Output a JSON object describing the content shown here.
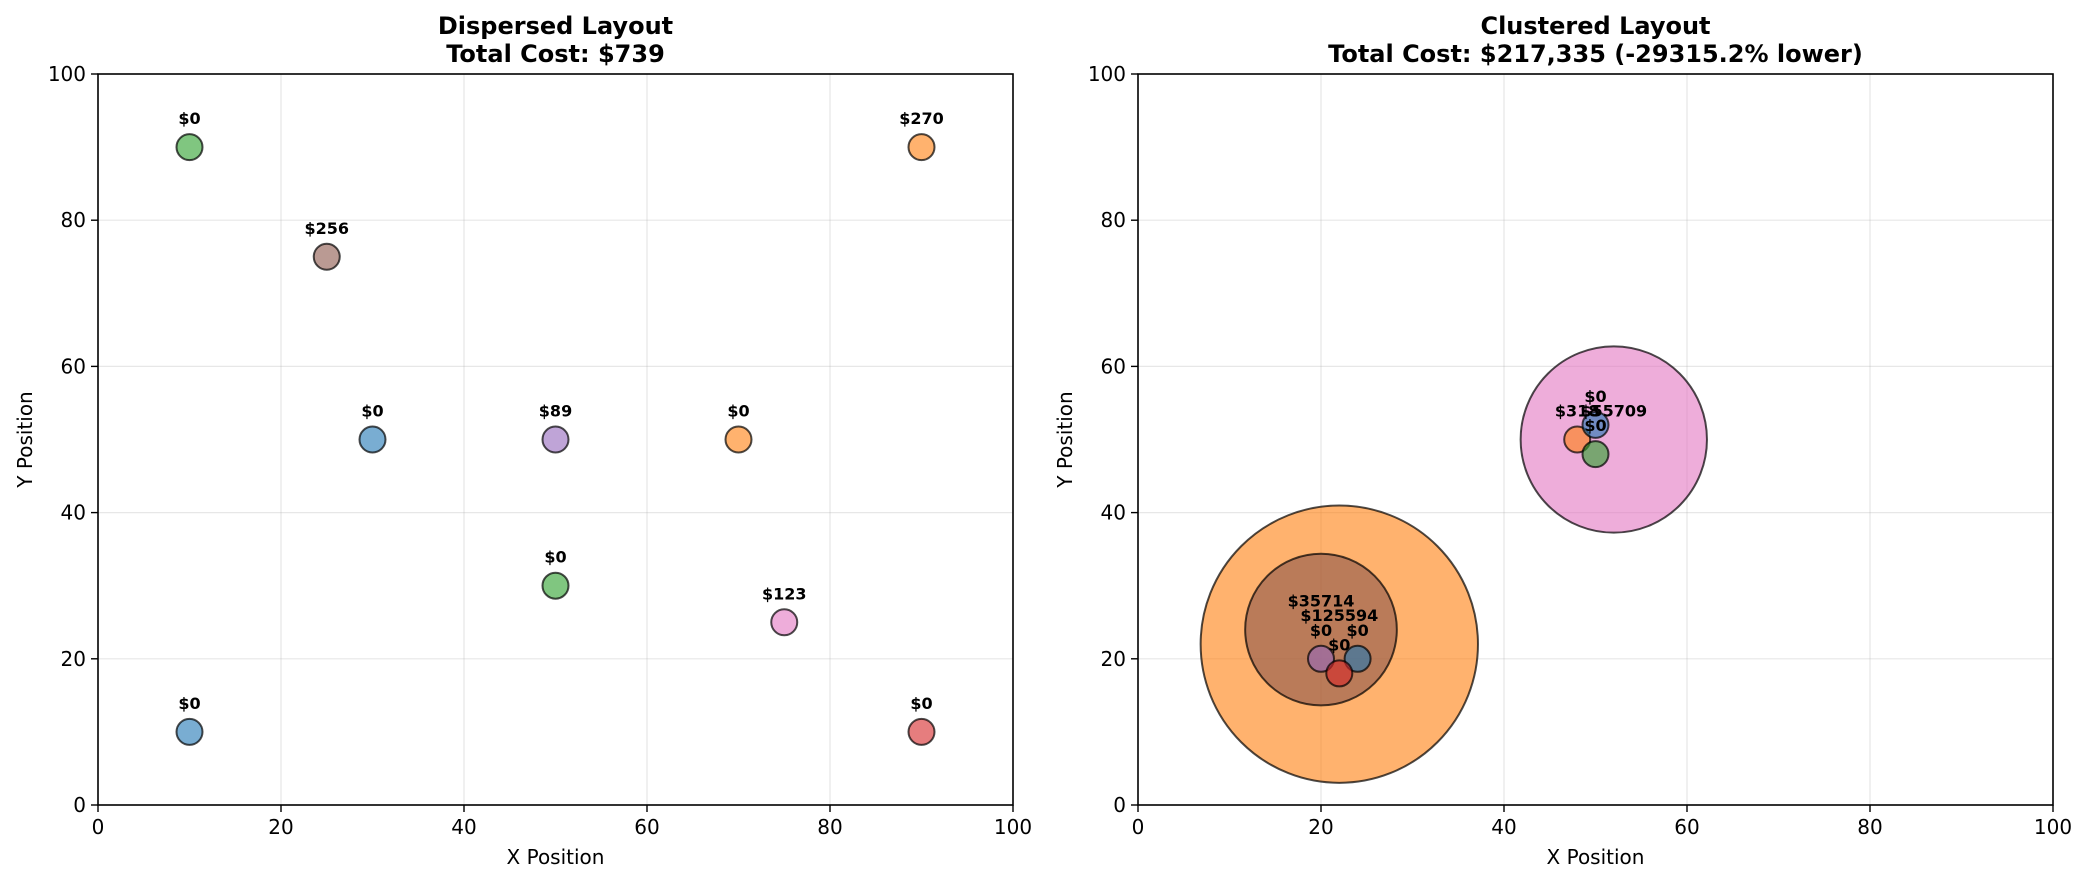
{
  "chart_data": [
    {
      "type": "scatter",
      "title": "Dispersed Layout",
      "subtitle": "Total Cost: $739",
      "xlabel": "X Position",
      "ylabel": "Y Position",
      "xlim": [
        0,
        100
      ],
      "ylim": [
        0,
        100
      ],
      "xticks": [
        "0",
        "20",
        "40",
        "60",
        "80",
        "100"
      ],
      "yticks": [
        "0",
        "20",
        "40",
        "60",
        "80",
        "100"
      ],
      "grid": true,
      "points": [
        {
          "x": 10,
          "y": 10,
          "size": 3,
          "label": "$0",
          "color": "#1f77b4"
        },
        {
          "x": 90,
          "y": 90,
          "size": 3,
          "label": "$270",
          "color": "#ff7f0e"
        },
        {
          "x": 50,
          "y": 30,
          "size": 3,
          "label": "$0",
          "color": "#2ca02c"
        },
        {
          "x": 90,
          "y": 10,
          "size": 3,
          "label": "$0",
          "color": "#d62728"
        },
        {
          "x": 50,
          "y": 50,
          "size": 3,
          "label": "$89",
          "color": "#9467bd"
        },
        {
          "x": 25,
          "y": 75,
          "size": 3,
          "label": "$256",
          "color": "#8c564b"
        },
        {
          "x": 75,
          "y": 25,
          "size": 3,
          "label": "$123",
          "color": "#e377c2"
        },
        {
          "x": 30,
          "y": 50,
          "size": 3,
          "label": "$0",
          "color": "#1f77b4"
        },
        {
          "x": 70,
          "y": 50,
          "size": 3,
          "label": "$0",
          "color": "#ff7f0e"
        },
        {
          "x": 10,
          "y": 90,
          "size": 3,
          "label": "$0",
          "color": "#2ca02c"
        }
      ]
    },
    {
      "type": "scatter",
      "title": "Clustered Layout",
      "subtitle": "Total Cost: $217,335 (-29315.2% lower)",
      "xlabel": "X Position",
      "ylabel": "Y Position",
      "xlim": [
        0,
        100
      ],
      "ylim": [
        0,
        100
      ],
      "xticks": [
        "0",
        "20",
        "40",
        "60",
        "80",
        "100"
      ],
      "yticks": [
        "0",
        "20",
        "40",
        "60",
        "80",
        "100"
      ],
      "grid": true,
      "points": [
        {
          "x": 22,
          "y": 22,
          "size": 32,
          "label": "$125594",
          "color": "#ff7f0e"
        },
        {
          "x": 52,
          "y": 50,
          "size": 21.5,
          "label": "$55709",
          "color": "#e377c2"
        },
        {
          "x": 20,
          "y": 24,
          "size": 17.5,
          "label": "$35714",
          "color": "#8c564b"
        },
        {
          "x": 20,
          "y": 20,
          "size": 3,
          "label": "$0",
          "color": "#9467bd"
        },
        {
          "x": 24,
          "y": 20,
          "size": 3,
          "label": "$0",
          "color": "#1f77b4"
        },
        {
          "x": 22,
          "y": 18,
          "size": 3,
          "label": "$0",
          "color": "#d62728"
        },
        {
          "x": 48,
          "y": 50,
          "size": 3,
          "label": "$318",
          "color": "#ff7f0e"
        },
        {
          "x": 50,
          "y": 52,
          "size": 3,
          "label": "$0",
          "color": "#1f77b4"
        },
        {
          "x": 50,
          "y": 48,
          "size": 3,
          "label": "$0",
          "color": "#2ca02c"
        }
      ]
    }
  ]
}
